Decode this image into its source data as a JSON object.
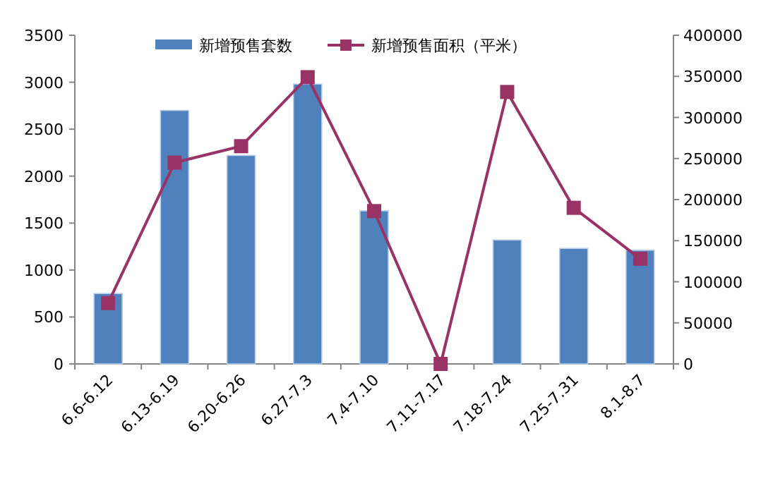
{
  "chart_data": {
    "type": "bar",
    "categories": [
      "6.6-6.12",
      "6.13-6.19",
      "6.20-6.26",
      "6.27-7.3",
      "7.4-7.10",
      "7.11-7.17",
      "7.18-7.24",
      "7.25-7.31",
      "8.1-8.7"
    ],
    "series": [
      {
        "name": "新增预售套数",
        "color": "#4f81bd",
        "values": [
          750,
          2700,
          2220,
          2980,
          1630,
          0,
          1320,
          1230,
          1210
        ]
      },
      {
        "name": "新增预售面积（平米）",
        "type": "line",
        "axis": "y2",
        "color": "#993366",
        "values": [
          74000,
          245000,
          265000,
          349000,
          186000,
          0,
          331000,
          190000,
          128000
        ]
      }
    ],
    "ylim": [
      0,
      3500
    ],
    "yticks": [
      0,
      500,
      1000,
      1500,
      2000,
      2500,
      3000,
      3500
    ],
    "y2lim": [
      0,
      400000
    ],
    "y2ticks": [
      0,
      50000,
      100000,
      150000,
      200000,
      250000,
      300000,
      350000,
      400000
    ],
    "marker": "square",
    "legend": "top"
  }
}
